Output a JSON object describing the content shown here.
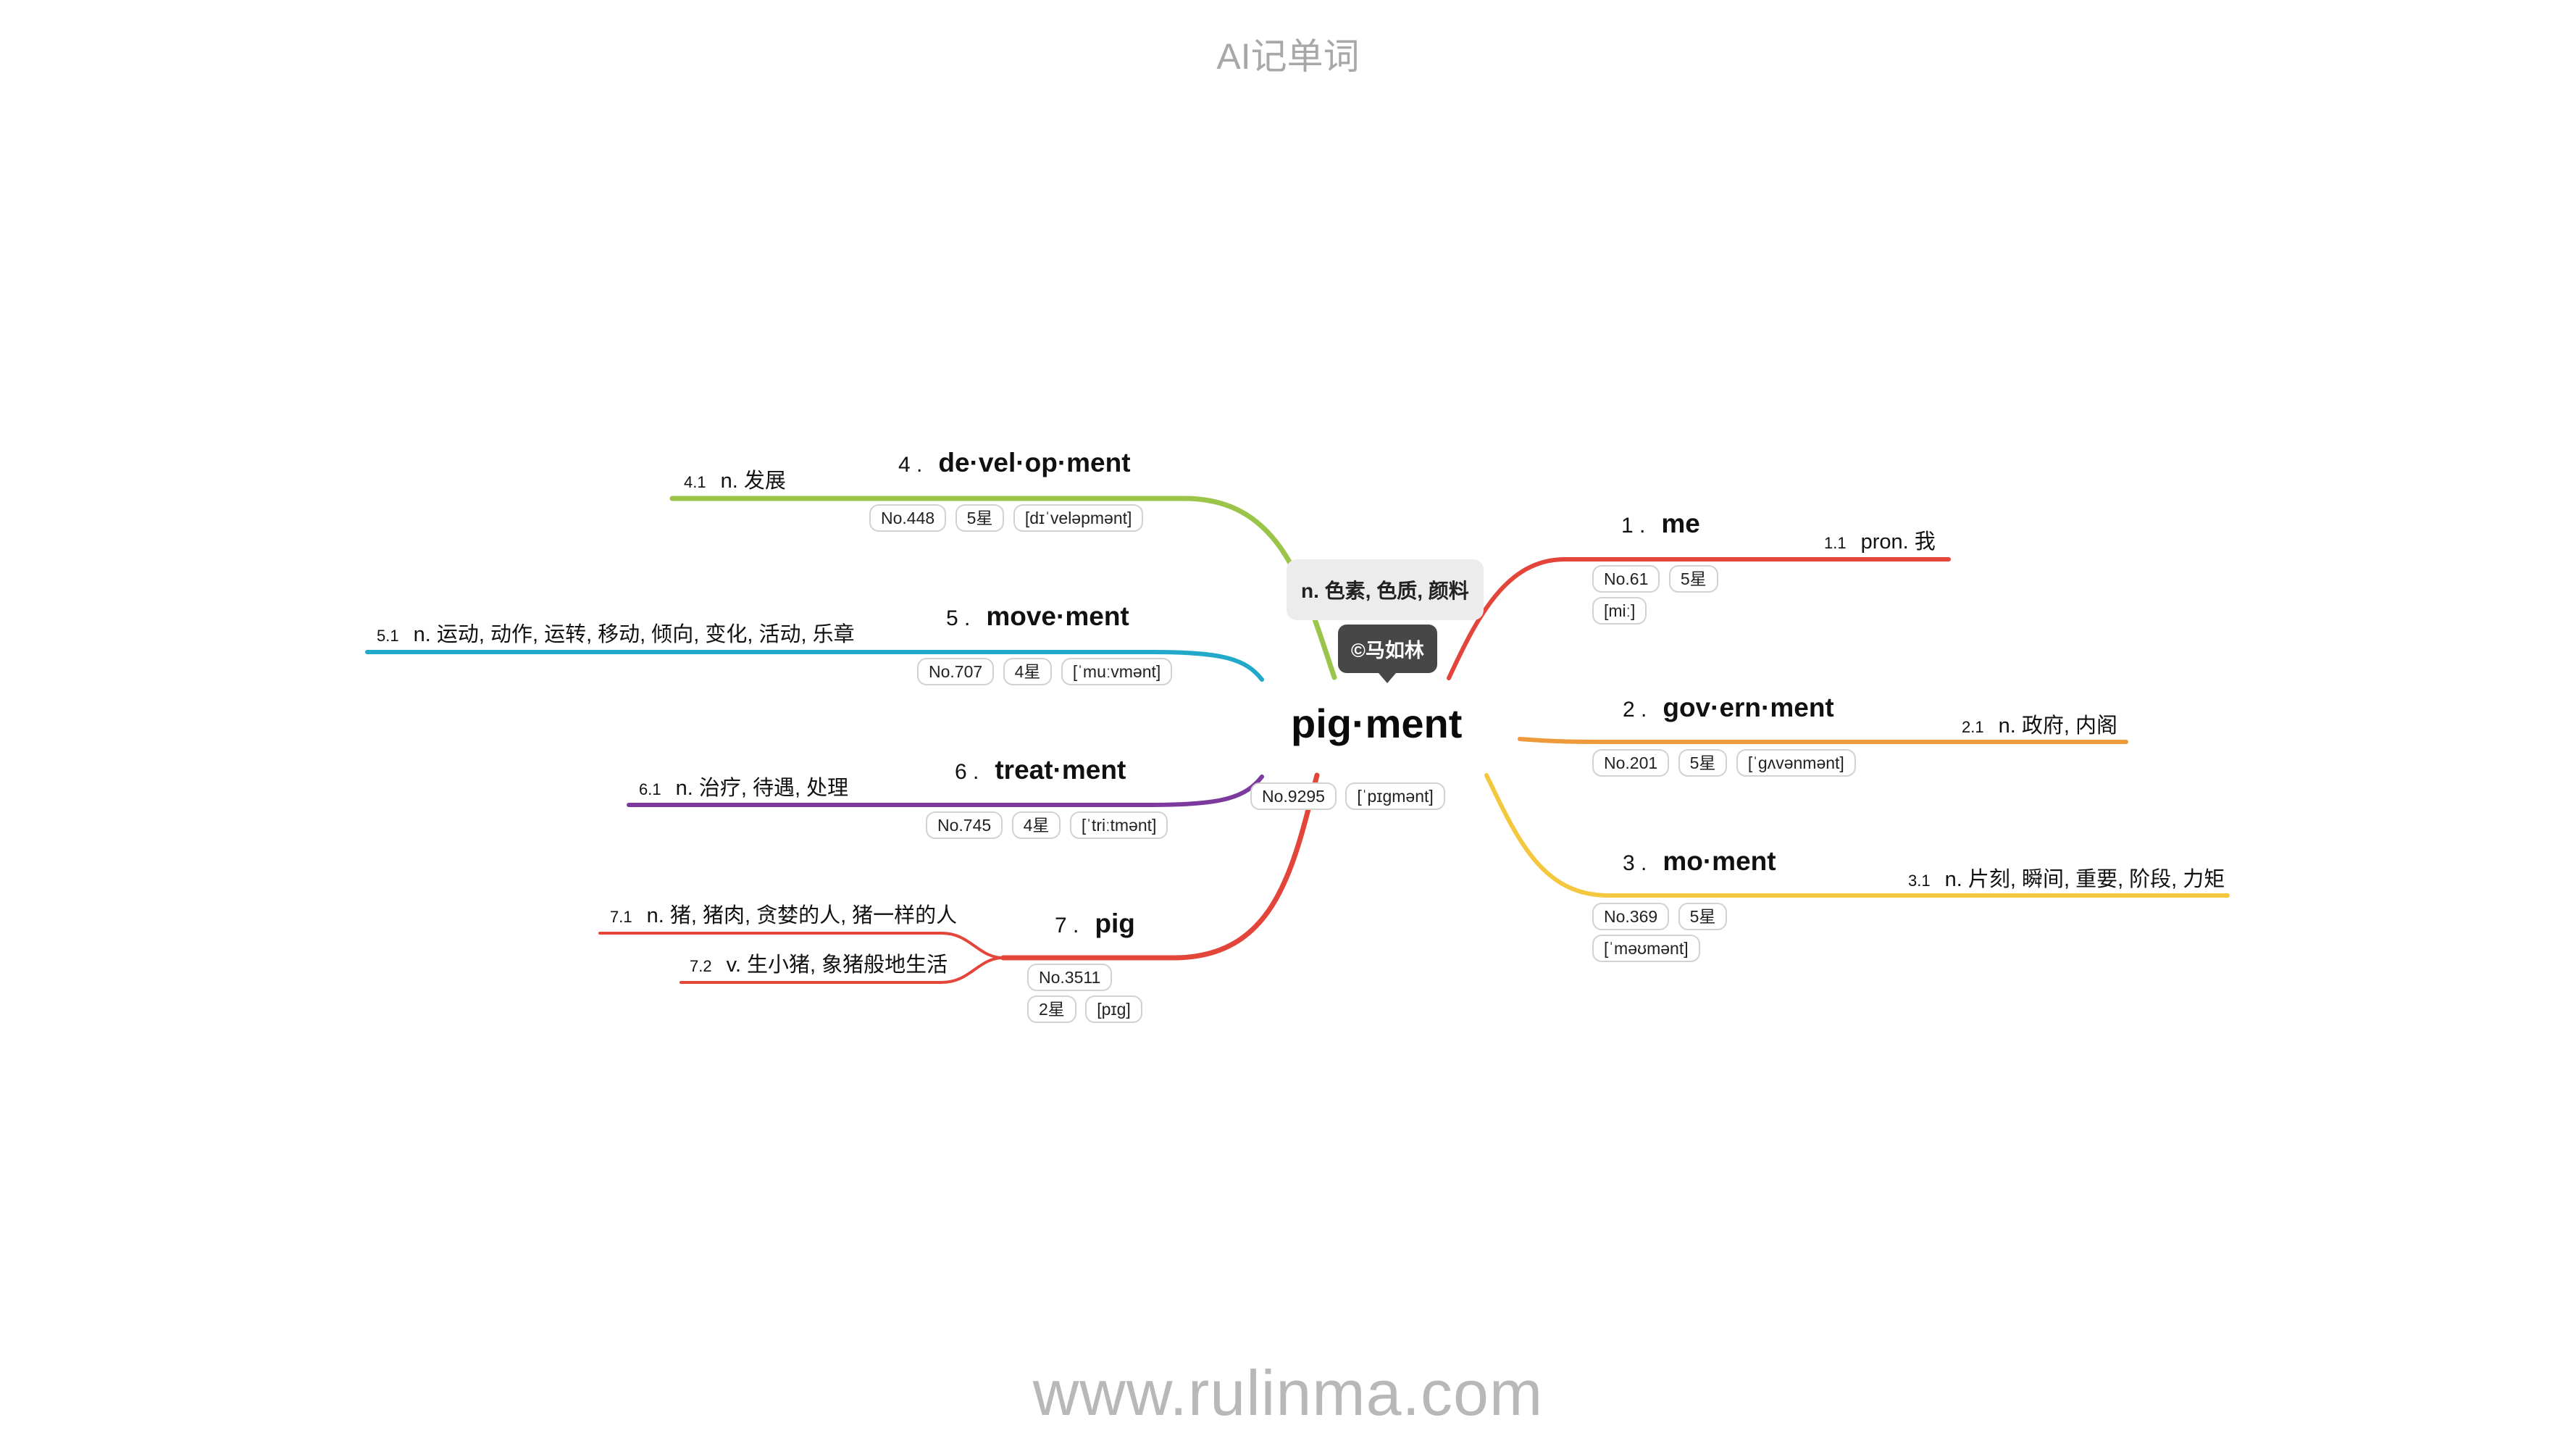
{
  "header": {
    "text": "AI记单词"
  },
  "footer": {
    "text": "www.rulinma.com"
  },
  "root": {
    "word": "pig·ment",
    "meaning": "n. 色素, 色质, 颜料",
    "watermark": "©马如林",
    "tags": [
      "No.9295",
      "[ˈpɪgmənt]"
    ]
  },
  "branches": [
    {
      "key": "me",
      "number": "1 .",
      "word": "me",
      "color": "#e4453a",
      "tags": [
        "No.61",
        "5星",
        "[miː]"
      ],
      "defs": [
        {
          "idx": "1.1",
          "text": "pron. 我"
        }
      ]
    },
    {
      "key": "government",
      "number": "2 .",
      "word": "gov·ern·ment",
      "color": "#ee9a3a",
      "tags": [
        "No.201",
        "5星",
        "[ˈɡʌvənmənt]"
      ],
      "defs": [
        {
          "idx": "2.1",
          "text": "n. 政府, 内阁"
        }
      ]
    },
    {
      "key": "moment",
      "number": "3 .",
      "word": "mo·ment",
      "color": "#f3c73e",
      "tags": [
        "No.369",
        "5星",
        "[ˈməʊmənt]"
      ],
      "defs": [
        {
          "idx": "3.1",
          "text": "n. 片刻, 瞬间, 重要, 阶段, 力矩"
        }
      ]
    },
    {
      "key": "development",
      "number": "4 .",
      "word": "de·vel·op·ment",
      "color": "#9bc44a",
      "tags": [
        "No.448",
        "5星",
        "[dɪˈveləpmənt]"
      ],
      "defs": [
        {
          "idx": "4.1",
          "text": "n. 发展"
        }
      ]
    },
    {
      "key": "movement",
      "number": "5 .",
      "word": "move·ment",
      "color": "#22a8c9",
      "tags": [
        "No.707",
        "4星",
        "[ˈmuːvmənt]"
      ],
      "defs": [
        {
          "idx": "5.1",
          "text": "n. 运动, 动作, 运转, 移动, 倾向, 变化, 活动, 乐章"
        }
      ]
    },
    {
      "key": "treatment",
      "number": "6 .",
      "word": "treat·ment",
      "color": "#7d3a9e",
      "tags": [
        "No.745",
        "4星",
        "[ˈtriːtmənt]"
      ],
      "defs": [
        {
          "idx": "6.1",
          "text": "n. 治疗, 待遇, 处理"
        }
      ]
    },
    {
      "key": "pig",
      "number": "7 .",
      "word": "pig",
      "color": "#e4453a",
      "tags": [
        "No.3511",
        "2星",
        "[pɪg]"
      ],
      "defs": [
        {
          "idx": "7.1",
          "text": "n. 猪, 猪肉, 贪婪的人, 猪一样的人"
        },
        {
          "idx": "7.2",
          "text": "v. 生小猪, 象猪般地生活"
        }
      ]
    }
  ]
}
